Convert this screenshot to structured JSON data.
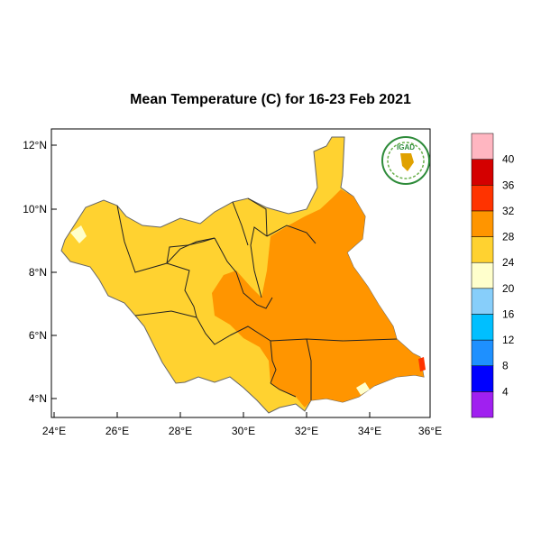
{
  "title": "Mean Temperature (C) for 16-23 Feb 2021",
  "logo": {
    "text": "IGAD",
    "color": "#2e8b3a"
  },
  "map": {
    "region": "South Sudan",
    "lat_ticks": [
      "4°N",
      "6°N",
      "8°N",
      "10°N",
      "12°N"
    ],
    "lon_ticks": [
      "24°E",
      "26°E",
      "28°E",
      "30°E",
      "32°E",
      "34°E",
      "36°E"
    ],
    "lat_range": [
      3.4,
      12.6
    ],
    "lon_range": [
      23.9,
      36.1
    ]
  },
  "legend": {
    "labels": [
      "4",
      "8",
      "12",
      "16",
      "20",
      "24",
      "28",
      "32",
      "36",
      "40"
    ],
    "colors": [
      "#a020f0",
      "#0000ff",
      "#1e90ff",
      "#00bfff",
      "#87cefa",
      "#ffffcc",
      "#ffd230",
      "#ff9500",
      "#ff3300",
      "#d40000",
      "#ffb6c1"
    ]
  }
}
